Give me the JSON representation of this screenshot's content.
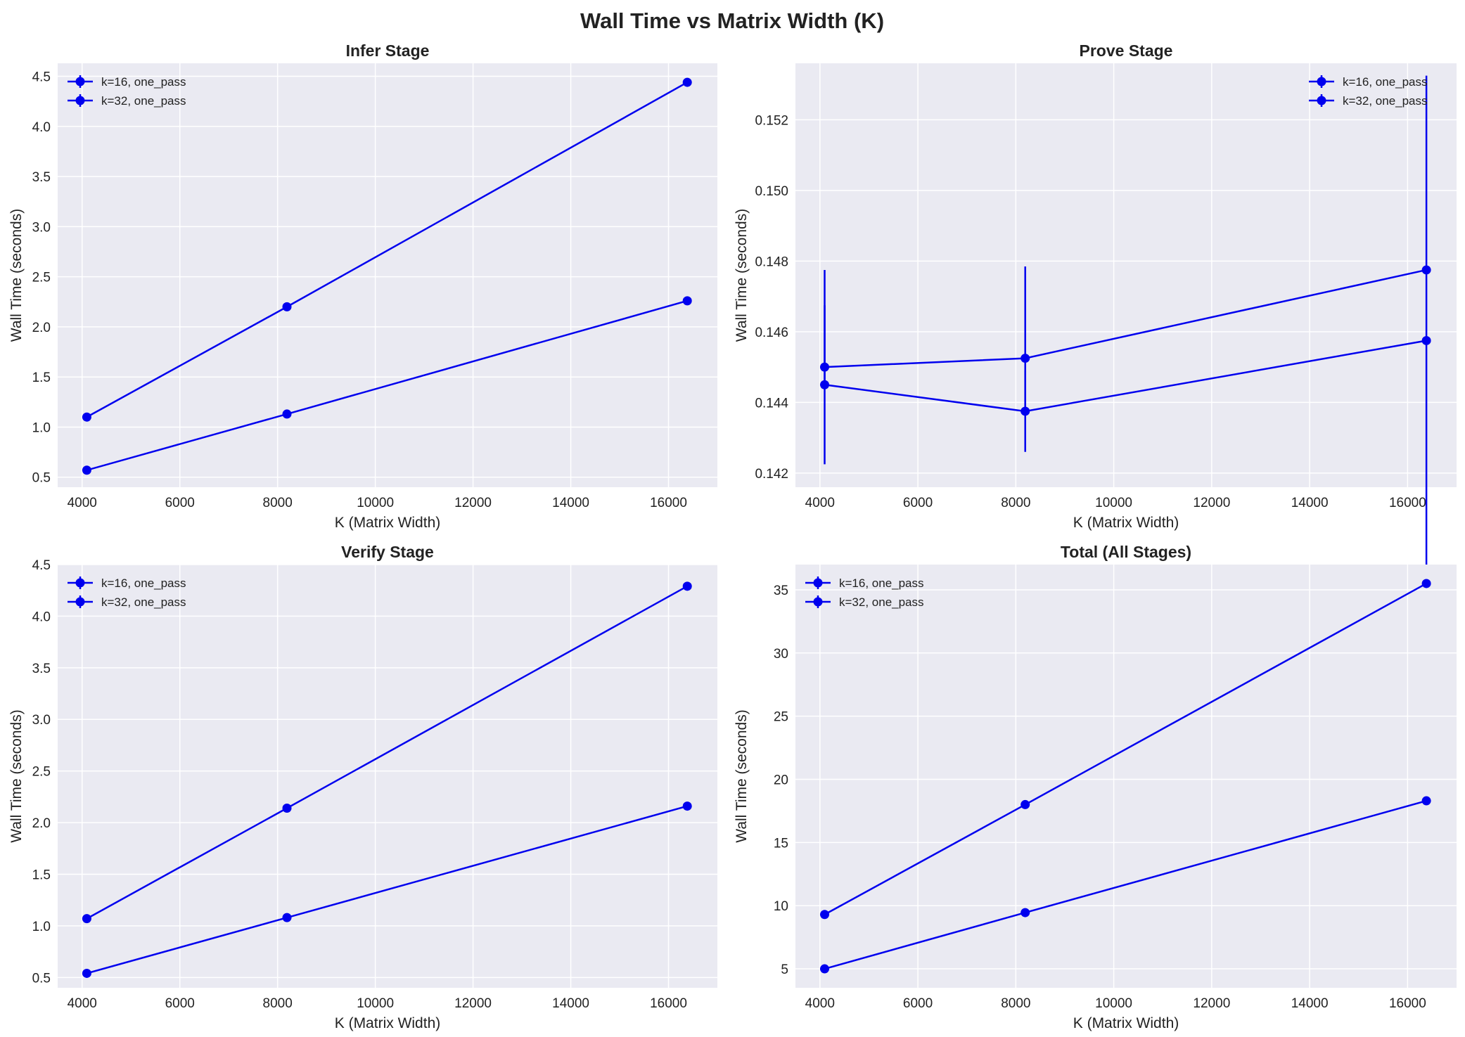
{
  "figure": {
    "title": "Wall Time vs Matrix Width (K)",
    "background": "#ffffff",
    "axes_background": "#eaeaf2",
    "grid_color": "#ffffff",
    "series_color": "#0000ee"
  },
  "chart_data": [
    {
      "type": "line",
      "title": "Infer Stage",
      "xlabel": "K (Matrix Width)",
      "ylabel": "Wall Time (seconds)",
      "xlim": [
        3500,
        17000
      ],
      "ylim": [
        0.4,
        4.63
      ],
      "xticks": [
        4000,
        6000,
        8000,
        10000,
        12000,
        14000,
        16000
      ],
      "xtick_labels": [
        "4000",
        "6000",
        "8000",
        "10000",
        "12000",
        "14000",
        "16000"
      ],
      "yticks": [
        0.5,
        1.0,
        1.5,
        2.0,
        2.5,
        3.0,
        3.5,
        4.0,
        4.5
      ],
      "ytick_labels": [
        "0.5",
        "1.0",
        "1.5",
        "2.0",
        "2.5",
        "3.0",
        "3.5",
        "4.0",
        "4.5"
      ],
      "legend_position": "upper left",
      "grid": true,
      "series": [
        {
          "name": "k=16, one_pass",
          "x": [
            4096,
            8192,
            16384
          ],
          "y": [
            1.1,
            2.2,
            4.44
          ],
          "yerr": [
            0,
            0,
            0
          ]
        },
        {
          "name": "k=32, one_pass",
          "x": [
            4096,
            8192,
            16384
          ],
          "y": [
            0.57,
            1.13,
            2.26
          ],
          "yerr": [
            0,
            0,
            0
          ]
        }
      ]
    },
    {
      "type": "line",
      "title": "Prove Stage",
      "xlabel": "K (Matrix Width)",
      "ylabel": "Wall Time (seconds)",
      "xlim": [
        3500,
        17000
      ],
      "ylim": [
        0.1416,
        0.1536
      ],
      "xticks": [
        4000,
        6000,
        8000,
        10000,
        12000,
        14000,
        16000
      ],
      "xtick_labels": [
        "4000",
        "6000",
        "8000",
        "10000",
        "12000",
        "14000",
        "16000"
      ],
      "yticks": [
        0.142,
        0.144,
        0.146,
        0.148,
        0.15,
        0.152
      ],
      "ytick_labels": [
        "0.142",
        "0.144",
        "0.146",
        "0.148",
        "0.150",
        "0.152"
      ],
      "legend_position": "upper right",
      "grid": true,
      "series": [
        {
          "name": "k=16, one_pass",
          "x": [
            4096,
            8192,
            16384
          ],
          "y": [
            0.145,
            0.14525,
            0.14775
          ],
          "yerr": [
            0,
            0,
            0
          ]
        },
        {
          "name": "k=32, one_pass",
          "x": [
            4096,
            8192,
            16384
          ],
          "y": [
            0.1445,
            0.14375,
            0.14575
          ],
          "yerr": [
            0.00225,
            0.00115,
            0.0075
          ]
        }
      ],
      "extra_errorbars": [
        {
          "x": 4096,
          "low": 0.1445,
          "high": 0.14775
        },
        {
          "x": 8192,
          "low": 0.14375,
          "high": 0.14785
        }
      ]
    },
    {
      "type": "line",
      "title": "Verify Stage",
      "xlabel": "K (Matrix Width)",
      "ylabel": "Wall Time (seconds)",
      "xlim": [
        3500,
        17000
      ],
      "ylim": [
        0.4,
        4.5
      ],
      "xticks": [
        4000,
        6000,
        8000,
        10000,
        12000,
        14000,
        16000
      ],
      "xtick_labels": [
        "4000",
        "6000",
        "8000",
        "10000",
        "12000",
        "14000",
        "16000"
      ],
      "yticks": [
        0.5,
        1.0,
        1.5,
        2.0,
        2.5,
        3.0,
        3.5,
        4.0,
        4.5
      ],
      "ytick_labels": [
        "0.5",
        "1.0",
        "1.5",
        "2.0",
        "2.5",
        "3.0",
        "3.5",
        "4.0",
        "4.5"
      ],
      "legend_position": "upper left",
      "grid": true,
      "series": [
        {
          "name": "k=16, one_pass",
          "x": [
            4096,
            8192,
            16384
          ],
          "y": [
            1.07,
            2.14,
            4.29
          ],
          "yerr": [
            0,
            0,
            0
          ]
        },
        {
          "name": "k=32, one_pass",
          "x": [
            4096,
            8192,
            16384
          ],
          "y": [
            0.54,
            1.08,
            2.16
          ],
          "yerr": [
            0,
            0,
            0
          ]
        }
      ]
    },
    {
      "type": "line",
      "title": "Total (All Stages)",
      "xlabel": "K (Matrix Width)",
      "ylabel": "Wall Time (seconds)",
      "xlim": [
        3500,
        17000
      ],
      "ylim": [
        3.5,
        37
      ],
      "xticks": [
        4000,
        6000,
        8000,
        10000,
        12000,
        14000,
        16000
      ],
      "xtick_labels": [
        "4000",
        "6000",
        "8000",
        "10000",
        "12000",
        "14000",
        "16000"
      ],
      "yticks": [
        5,
        10,
        15,
        20,
        25,
        30,
        35
      ],
      "ytick_labels": [
        "5",
        "10",
        "15",
        "20",
        "25",
        "30",
        "35"
      ],
      "legend_position": "upper left",
      "grid": true,
      "series": [
        {
          "name": "k=16, one_pass",
          "x": [
            4096,
            8192,
            16384
          ],
          "y": [
            9.3,
            18.0,
            35.5
          ],
          "yerr": [
            0,
            0,
            0
          ]
        },
        {
          "name": "k=32, one_pass",
          "x": [
            4096,
            8192,
            16384
          ],
          "y": [
            5.0,
            9.45,
            18.3
          ],
          "yerr": [
            0,
            0,
            0
          ]
        }
      ]
    }
  ]
}
